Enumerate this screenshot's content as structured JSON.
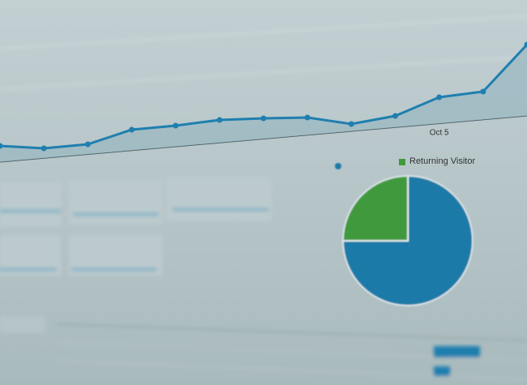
{
  "chart_data": [
    {
      "type": "line",
      "categories": [
        null,
        null,
        null,
        null,
        null,
        null,
        null,
        null,
        null,
        null,
        "Oct 5",
        null,
        null
      ],
      "values": [
        20,
        17,
        22,
        40,
        45,
        52,
        54,
        55,
        47,
        57,
        80,
        87,
        145
      ],
      "color": "#1f7fae"
    },
    {
      "type": "pie",
      "categories": [
        null,
        "Returning Visitor"
      ],
      "values": [
        75,
        25
      ],
      "colors": [
        "#1a7aa8",
        "#3f9a3c"
      ]
    }
  ]
}
